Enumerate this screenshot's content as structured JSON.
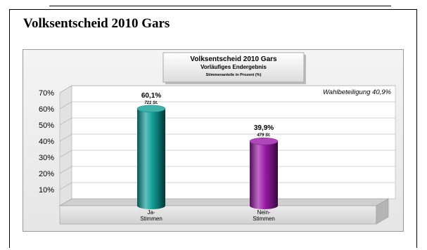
{
  "page": {
    "heading": "Volksentscheid 2010 Gars"
  },
  "chart_data": {
    "type": "bar",
    "title": "Volksentscheid 2010 Gars",
    "subtitle": "Vorläufiges Endergebnis",
    "note": "Stimmenanteile in Prozent (%)",
    "annotation": "Wahlbeteiligung 40,9%",
    "categories": [
      "Ja-\nStimmen",
      "Nein-\nStimmen"
    ],
    "values": [
      60.1,
      39.9
    ],
    "value_labels": [
      "60,1%",
      "39,9%"
    ],
    "sub_labels": [
      "721 St.",
      "479 St."
    ],
    "colors": [
      "#0f9e96",
      "#9a1aa8"
    ],
    "yticks": [
      10,
      20,
      30,
      40,
      50,
      60,
      70
    ],
    "ytick_labels": [
      "10%",
      "20%",
      "30%",
      "40%",
      "50%",
      "60%",
      "70%"
    ],
    "ylim": [
      0,
      70
    ],
    "grid": true,
    "xlabel": "",
    "ylabel": ""
  }
}
